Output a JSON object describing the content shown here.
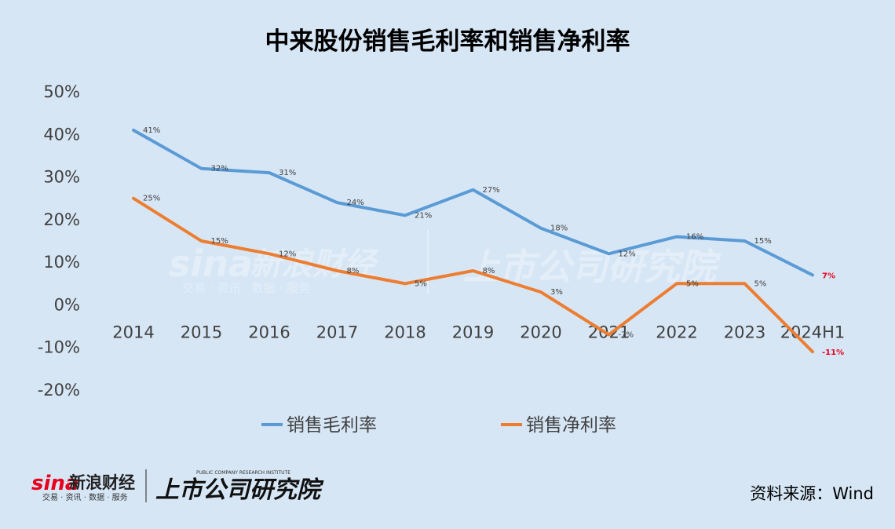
{
  "chart_data": {
    "type": "line",
    "title": "中来股份销售毛利率和销售净利率",
    "categories": [
      "2014",
      "2015",
      "2016",
      "2017",
      "2018",
      "2019",
      "2020",
      "2021",
      "2022",
      "2023",
      "2024H1"
    ],
    "series": [
      {
        "name": "销售毛利率",
        "color": "#5b9bd5",
        "values": [
          41,
          32,
          31,
          24,
          21,
          27,
          18,
          12,
          16,
          15,
          7
        ],
        "labels": [
          "41%",
          "32%",
          "31%",
          "24%",
          "21%",
          "27%",
          "18%",
          "12%",
          "16%",
          "15%",
          "7%"
        ]
      },
      {
        "name": "销售净利率",
        "color": "#ed7d31",
        "values": [
          25,
          15,
          12,
          8,
          5,
          8,
          3,
          -7,
          5,
          5,
          -11
        ],
        "labels": [
          "25%",
          "15%",
          "12%",
          "8%",
          "5%",
          "8%",
          "3%",
          "-7%",
          "5%",
          "5%",
          "-11%"
        ]
      }
    ],
    "ylim": [
      -20,
      50
    ],
    "yticks": [
      50,
      40,
      30,
      20,
      10,
      0,
      -10,
      -20
    ],
    "ytick_labels": [
      "50%",
      "40%",
      "30%",
      "20%",
      "10%",
      "0%",
      "-10%",
      "-20%"
    ],
    "legend_position": "bottom",
    "grid": false,
    "highlight_color": "#e8001c"
  },
  "source": "资料来源：Wind",
  "logos": {
    "sina_small": "sina",
    "sina_name": "新浪财经",
    "sina_tagline": "交易 · 资讯 · 数据 · 服务",
    "research_institute": "上市公司研究院",
    "research_tagline": "PUBLIC COMPANY RESEARCH INSTITUTE"
  }
}
